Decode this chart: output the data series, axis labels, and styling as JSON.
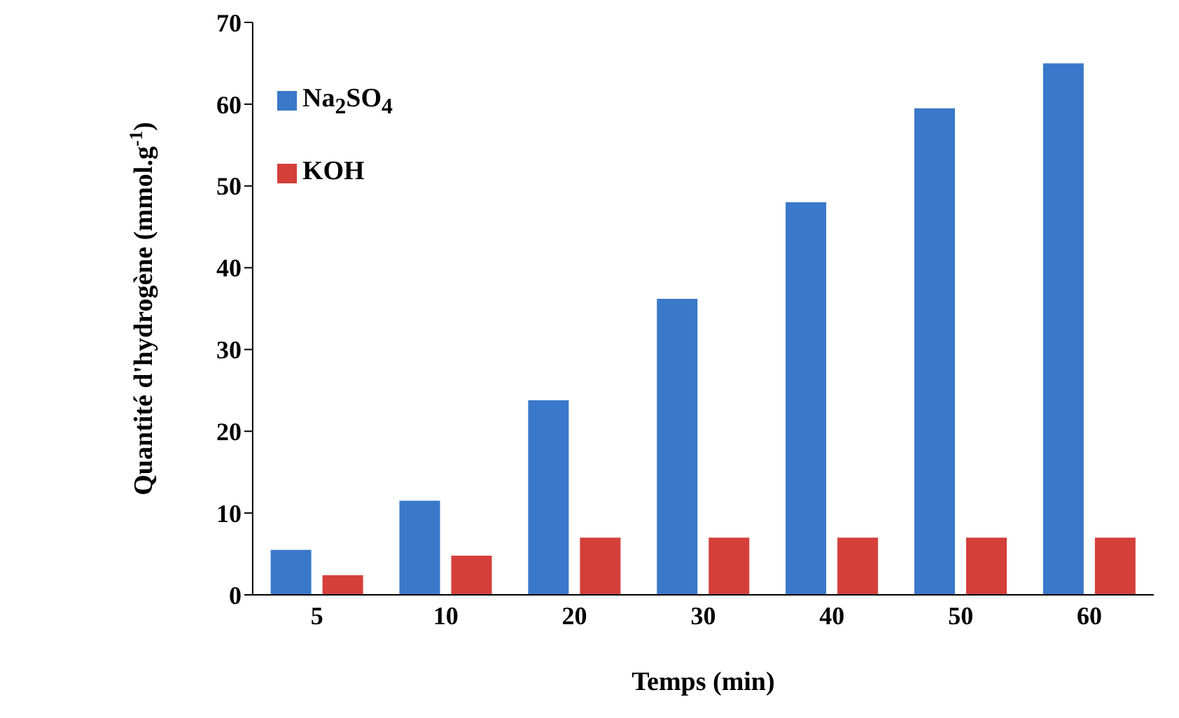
{
  "chart_data": {
    "type": "bar",
    "xlabel": "Temps (min)",
    "ylabel": "Quantité d'hydrogène (mmol.g$^{-1}$)",
    "categories": [
      "5",
      "10",
      "20",
      "30",
      "40",
      "50",
      "60"
    ],
    "series": [
      {
        "name": "Na$_{2}$SO$_{4}$",
        "color": "#3a78c9",
        "values": [
          5.5,
          11.5,
          23.8,
          36.2,
          48.0,
          59.5,
          65.0
        ]
      },
      {
        "name": "KOH",
        "color": "#d43f3a",
        "values": [
          2.4,
          4.8,
          7.0,
          7.0,
          7.0,
          7.0,
          7.0
        ]
      }
    ],
    "ylim": [
      0,
      70
    ],
    "yticks": [
      0,
      10,
      20,
      30,
      40,
      50,
      60,
      70
    ],
    "grid": false,
    "legend": "top left"
  }
}
